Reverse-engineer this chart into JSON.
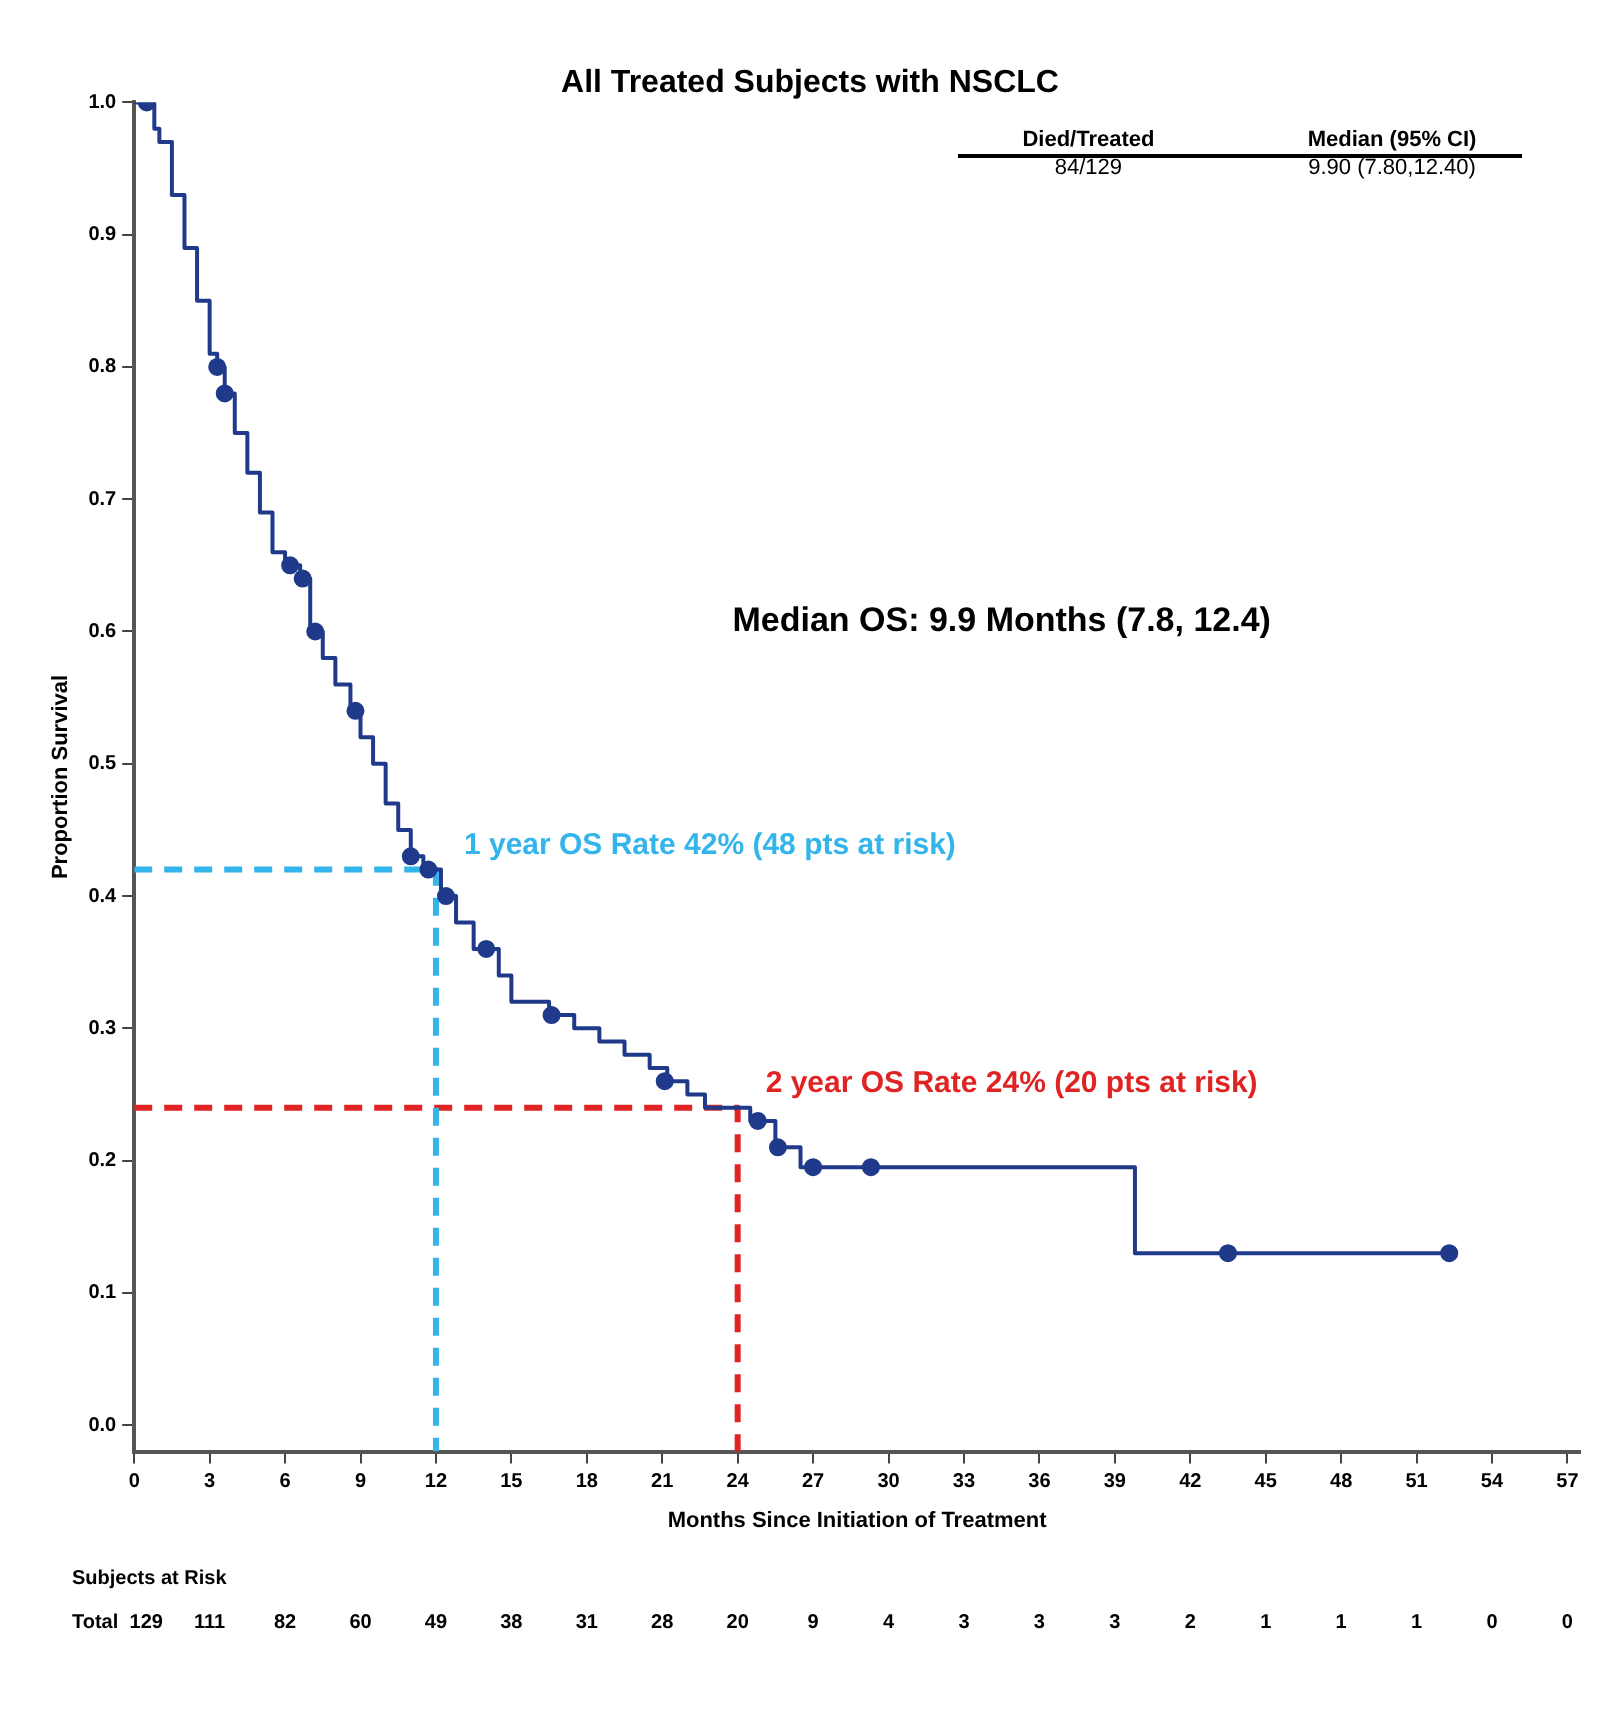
{
  "chart_data": {
    "type": "step",
    "title": "All Treated Subjects with NSCLC",
    "xlabel": "Months Since Initiation of Treatment",
    "ylabel": "Proportion Survival",
    "xlim": [
      0,
      57.5
    ],
    "xticks": [
      0,
      3,
      6,
      9,
      12,
      15,
      18,
      21,
      24,
      27,
      30,
      33,
      36,
      39,
      42,
      45,
      48,
      51,
      54,
      57
    ],
    "ylim": [
      -0.02,
      1.0
    ],
    "yticks": [
      {
        "value": 0,
        "label": "0.0"
      },
      {
        "value": 0.1,
        "label": "0.1"
      },
      {
        "value": 0.2,
        "label": "0.2"
      },
      {
        "value": 0.3,
        "label": "0.3"
      },
      {
        "value": 0.4,
        "label": "0.4"
      },
      {
        "value": 0.5,
        "label": "0.5"
      },
      {
        "value": 0.6,
        "label": "0.6"
      },
      {
        "value": 0.7,
        "label": "0.7"
      },
      {
        "value": 0.8,
        "label": "0.8"
      },
      {
        "value": 0.9,
        "label": "0.9"
      },
      {
        "value": 1.0,
        "label": "1.0"
      }
    ],
    "grid": false,
    "legend": false,
    "series": [
      {
        "color": "#1f3a8a",
        "marker": "none",
        "x": [
          0,
          0.8,
          1.0,
          1.5,
          2,
          2.5,
          3,
          3.3,
          3.6,
          4,
          4.5,
          5,
          5.5,
          6,
          6.6,
          7,
          7.5,
          8,
          8.6,
          9,
          9.5,
          10,
          10.5,
          11,
          11.5,
          12.2,
          12.8,
          13.5,
          14.5,
          15,
          16.5,
          17.5,
          18.5,
          19.5,
          20.5,
          21.2,
          22,
          22.7,
          24.5,
          25.5,
          26.5,
          39.8,
          52.3
        ],
        "values": [
          1.0,
          0.98,
          0.97,
          0.93,
          0.89,
          0.85,
          0.81,
          0.8,
          0.78,
          0.75,
          0.72,
          0.69,
          0.66,
          0.65,
          0.64,
          0.6,
          0.58,
          0.56,
          0.54,
          0.52,
          0.5,
          0.47,
          0.45,
          0.43,
          0.42,
          0.4,
          0.38,
          0.36,
          0.34,
          0.32,
          0.31,
          0.3,
          0.29,
          0.28,
          0.27,
          0.26,
          0.25,
          0.24,
          0.23,
          0.21,
          0.195,
          0.13,
          0.13
        ]
      },
      {
        "type": "scatter",
        "color": "#1f3a8a",
        "marker": "circle",
        "x": [
          0.5,
          3.3,
          3.6,
          6.2,
          6.7,
          7.2,
          8.8,
          11.0,
          11.7,
          12.4,
          14.0,
          16.6,
          21.1,
          24.8,
          25.6,
          27.0,
          29.3,
          43.5,
          52.3
        ],
        "values": [
          1.0,
          0.8,
          0.78,
          0.65,
          0.64,
          0.6,
          0.54,
          0.43,
          0.42,
          0.4,
          0.36,
          0.31,
          0.26,
          0.23,
          0.21,
          0.195,
          0.195,
          0.13,
          0.13
        ]
      },
      {
        "type": "line",
        "color": "#33b5ec",
        "marker": "none",
        "line_style": "dashed",
        "x": [
          0,
          12,
          12
        ],
        "values": [
          0.42,
          0.42,
          -0.02
        ]
      },
      {
        "type": "line",
        "color": "#e02424",
        "marker": "none",
        "line_style": "dashed",
        "x": [
          0,
          24,
          24
        ],
        "values": [
          0.24,
          0.24,
          -0.02
        ]
      }
    ],
    "annotations": [
      "1 year OS Rate 42% (48 pts at risk)",
      "2 year OS Rate 24% (20 pts at risk)",
      "Median OS: 9.9 Months (7.8, 12.4)",
      "Died/Treated",
      "84/129",
      "Median (95% CI)",
      "9.90 (7.80,12.40)",
      "Subjects at Risk",
      "Total",
      "129",
      "111",
      "82",
      "60",
      "49",
      "38",
      "31",
      "28",
      "20",
      "9",
      "4",
      "3",
      "3",
      "3",
      "2",
      "1",
      "1",
      "1",
      "0",
      "0"
    ]
  }
}
